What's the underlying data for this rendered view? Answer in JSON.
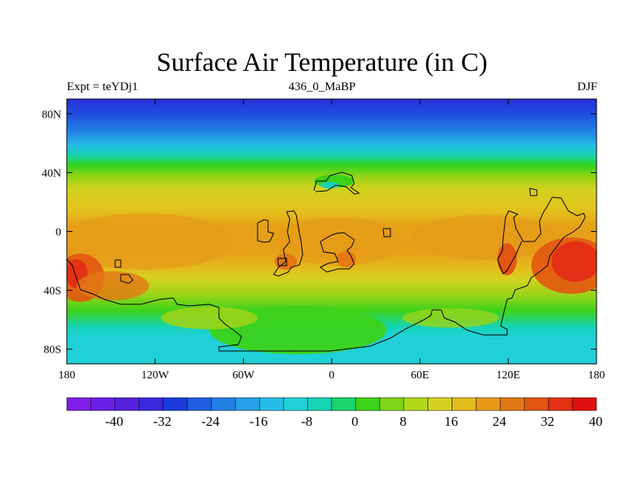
{
  "title": "Surface Air Temperature (in C)",
  "subtitle_left": "Expt = teYDj1",
  "subtitle_center": "436_0_MaBP",
  "subtitle_right": "DJF",
  "lat_labels": [
    "80N",
    "40N",
    "0",
    "40S",
    "80S"
  ],
  "lon_labels": [
    "180",
    "120W",
    "60W",
    "0",
    "60E",
    "120E",
    "180"
  ],
  "colorbar": {
    "labels": [
      "-40",
      "-32",
      "-24",
      "-16",
      "-8",
      "0",
      "8",
      "16",
      "24",
      "32",
      "40"
    ],
    "colors": [
      "#7e1ee8",
      "#6a1ee6",
      "#5522e0",
      "#3a28dc",
      "#1a3ade",
      "#1f5fe0",
      "#2380e4",
      "#26a0e8",
      "#25bde6",
      "#1fd0d8",
      "#15d4b6",
      "#18d46a",
      "#3cd21a",
      "#7ed416",
      "#b0d81a",
      "#d4d21e",
      "#e4bc1c",
      "#e69a18",
      "#e47814",
      "#e25612",
      "#e43014",
      "#e01010"
    ]
  }
}
